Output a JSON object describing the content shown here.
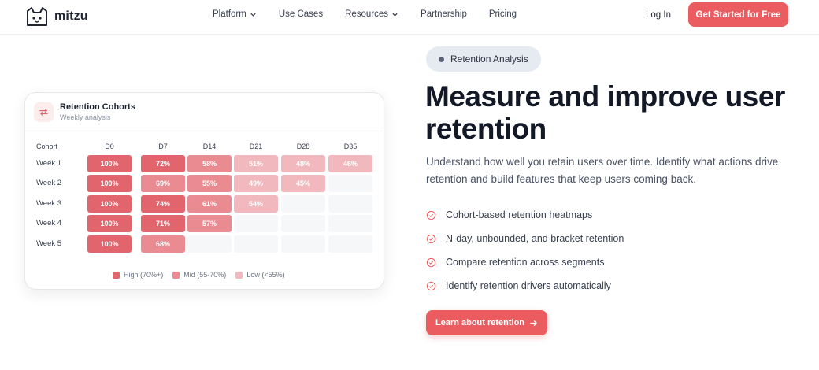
{
  "brand": {
    "name": "mitzu"
  },
  "nav": {
    "links": [
      {
        "label": "Platform",
        "dropdown": true
      },
      {
        "label": "Use Cases",
        "dropdown": false
      },
      {
        "label": "Resources",
        "dropdown": true
      },
      {
        "label": "Partnership",
        "dropdown": false
      },
      {
        "label": "Pricing",
        "dropdown": false
      }
    ],
    "login": "Log In",
    "cta": "Get Started for Free"
  },
  "card": {
    "icon": "repeat-arrows-icon",
    "title": "Retention Cohorts",
    "subtitle": "Weekly analysis",
    "header_cohort": "Cohort",
    "columns": [
      "D0",
      "D7",
      "D14",
      "D21",
      "D28",
      "D35"
    ],
    "rows": [
      {
        "label": "Week 1",
        "values": [
          "100%",
          "72%",
          "58%",
          "51%",
          "48%",
          "46%"
        ]
      },
      {
        "label": "Week 2",
        "values": [
          "100%",
          "69%",
          "55%",
          "49%",
          "45%",
          ""
        ]
      },
      {
        "label": "Week 3",
        "values": [
          "100%",
          "74%",
          "61%",
          "54%",
          "",
          ""
        ]
      },
      {
        "label": "Week 4",
        "values": [
          "100%",
          "71%",
          "57%",
          "",
          "",
          ""
        ]
      },
      {
        "label": "Week 5",
        "values": [
          "100%",
          "68%",
          "",
          "",
          "",
          ""
        ]
      }
    ],
    "legend": [
      {
        "label": "High (70%+)",
        "color": "#e2656e"
      },
      {
        "label": "Mid (55-70%)",
        "color": "#ea8b91"
      },
      {
        "label": "Low (<55%)",
        "color": "#f1b9bd"
      }
    ]
  },
  "hero": {
    "badge": "Retention Analysis",
    "headline": "Measure and improve user retention",
    "description": "Understand how well you retain users over time. Identify what actions drive retention and build features that keep users coming back.",
    "features": [
      "Cohort-based retention heatmaps",
      "N-day, unbounded, and bracket retention",
      "Compare retention across segments",
      "Identify retention drivers automatically"
    ],
    "cta": "Learn about retention"
  },
  "colors": {
    "accent": "#ea5c60",
    "badge_bg": "#e6ebf2"
  }
}
